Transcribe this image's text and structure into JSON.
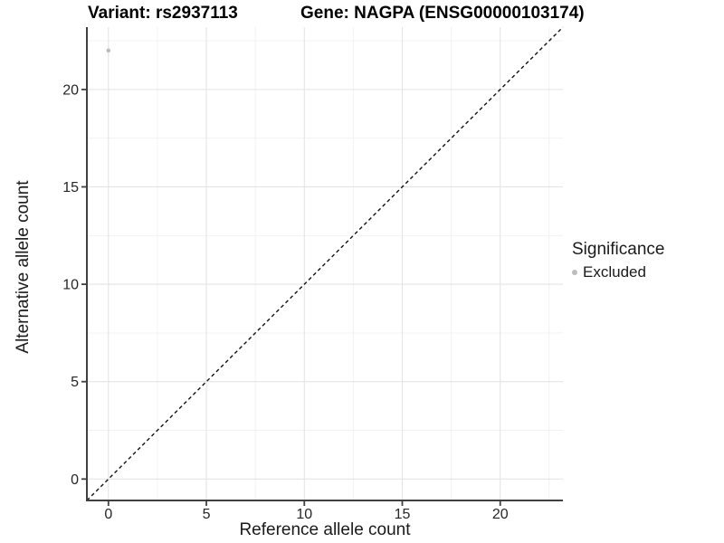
{
  "chart_data": {
    "type": "scatter",
    "title_left": "Variant: rs2937113",
    "title_right": "Gene: NAGPA (ENSG00000103174)",
    "xlabel": "Reference allele count",
    "ylabel": "Alternative allele count",
    "xlim": [
      -1.1,
      23.2
    ],
    "ylim": [
      -1.1,
      23.2
    ],
    "x_ticks": [
      0,
      5,
      10,
      15,
      20
    ],
    "y_ticks": [
      0,
      5,
      10,
      15,
      20
    ],
    "x_minor": [
      2.5,
      7.5,
      12.5,
      17.5,
      22.5
    ],
    "y_minor": [
      2.5,
      7.5,
      12.5,
      17.5,
      22.5
    ],
    "grid": true,
    "reference_line": {
      "kind": "identity",
      "slope": 1,
      "intercept": 0,
      "style": "dashed"
    },
    "series": [
      {
        "name": "Excluded",
        "color": "#bdbdbd",
        "points": [
          {
            "x": 0,
            "y": 22
          }
        ]
      }
    ],
    "legend": {
      "title": "Significance",
      "position": "right",
      "entries": [
        {
          "label": "Excluded",
          "color": "#bdbdbd"
        }
      ]
    },
    "colors": {
      "grid_major": "#e4e4e4",
      "grid_minor": "#f1f1f1",
      "axis_line": "#404040",
      "tick_label": "#262626",
      "reference_line": "#111111"
    }
  }
}
